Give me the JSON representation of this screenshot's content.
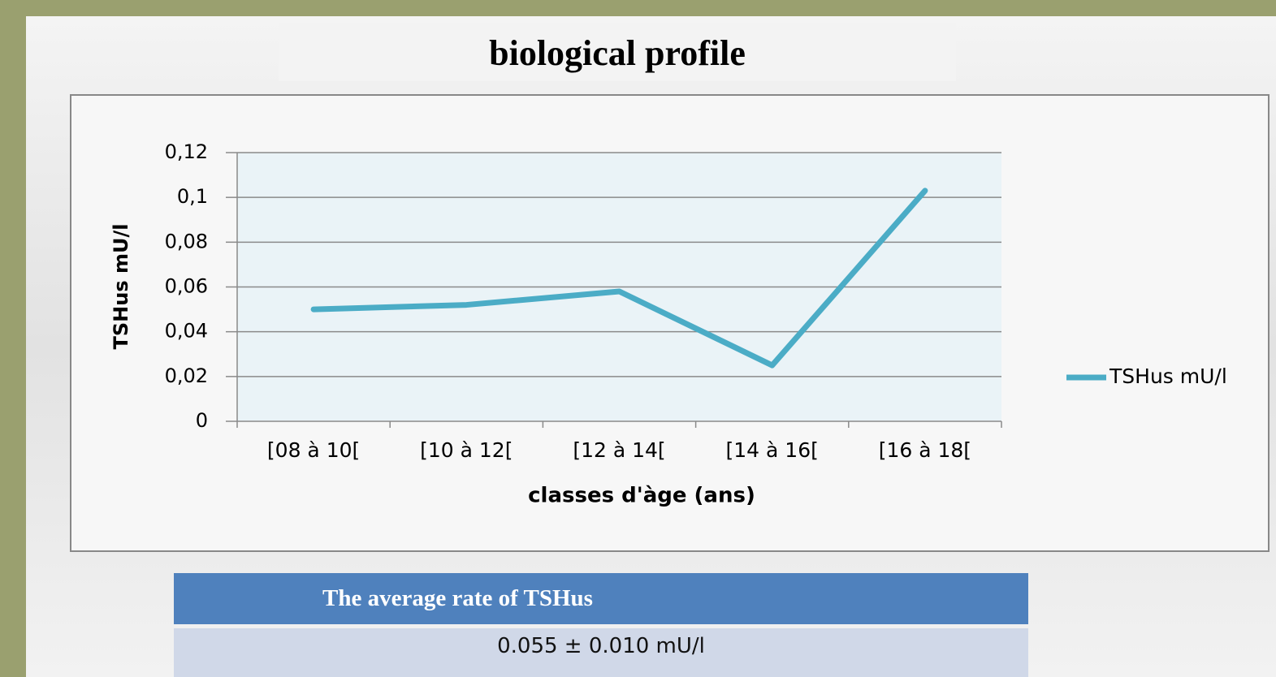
{
  "title": "biological profile",
  "chart_data": {
    "type": "line",
    "x_label": "classes d'àge (ans)",
    "y_label": "TSHus mU/l",
    "categories": [
      "[08 à 10[",
      "[10 à 12[",
      "[12 à 14[",
      "[14 à 16[",
      "[16 à 18["
    ],
    "series": [
      {
        "name": "TSHus mU/l",
        "color": "#4bacc6",
        "values": [
          0.05,
          0.052,
          0.058,
          0.025,
          0.103
        ]
      }
    ],
    "ylim": [
      0,
      0.12
    ],
    "yticks": [
      0,
      {
        "value": 0.02,
        "label": "0,02"
      },
      {
        "value": 0.04,
        "label": "0,04"
      },
      {
        "value": 0.06,
        "label": "0,06"
      },
      {
        "value": 0.08,
        "label": "0,08"
      },
      {
        "value": 0.1,
        "label": "0,1"
      },
      {
        "value": 0.12,
        "label": "0,12"
      }
    ],
    "grid": true,
    "legend": "right"
  },
  "table": {
    "header": "The average rate of  TSHus",
    "rows": [
      [
        "0.055 ± 0.010 mU/l"
      ]
    ]
  }
}
